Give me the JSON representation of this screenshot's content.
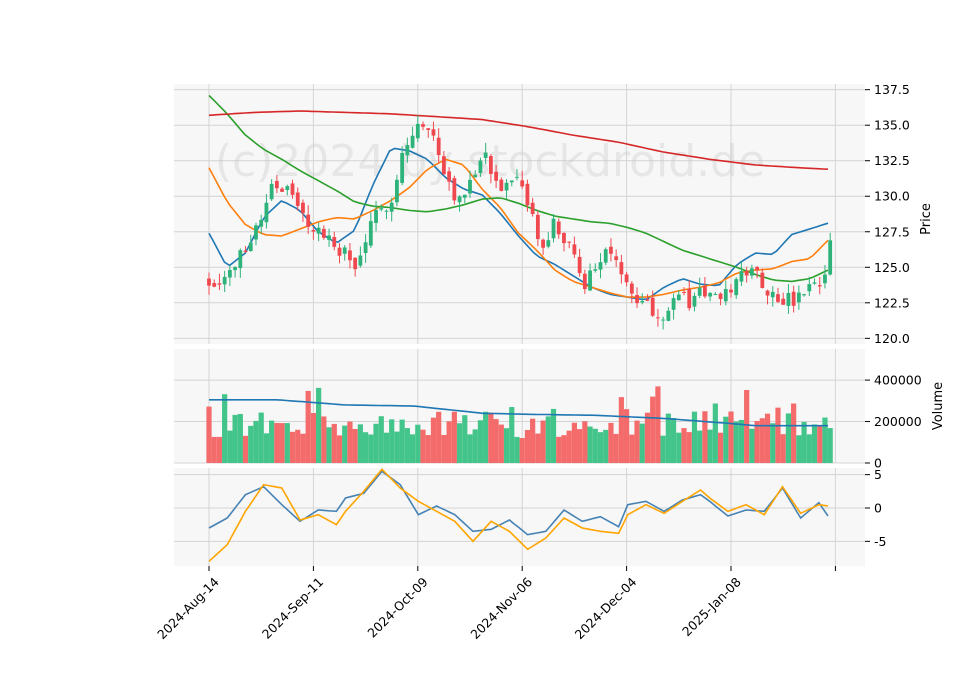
{
  "watermark": "(c)2024 by stockdroid.de",
  "colors": {
    "up": "#2db37a",
    "down": "#f0484f",
    "vol_up": "#43c48a",
    "vol_down": "#f46b6b",
    "ma_short": "#1f77b4",
    "ma_mid": "#ff7f0e",
    "ma_long": "#2ca02c",
    "ma_very_long": "#d62728",
    "osc_fast": "#4682b4",
    "osc_slow": "#ffa500",
    "grid": "#d4d4d4",
    "panel_bg": "#f7f7f7"
  },
  "chart_data": [
    {
      "type": "candlestick",
      "panel": "price",
      "ylabel": "Price",
      "ylim": [
        119.6,
        137.9
      ],
      "yticks": [
        "137.5",
        "135.0",
        "132.5",
        "130.0",
        "127.5",
        "125.0",
        "122.5",
        "120.0"
      ],
      "x_dates": [
        "2024-Aug-14",
        "2024-Sep-11",
        "2024-Oct-09",
        "2024-Nov-06",
        "2024-Dec-04",
        "2025-Jan-08"
      ],
      "n_bars": 120,
      "anchors_close": [
        [
          0,
          124.0
        ],
        [
          4,
          124.5
        ],
        [
          7,
          126.5
        ],
        [
          10,
          128.5
        ],
        [
          12,
          131.0
        ],
        [
          15,
          130.5
        ],
        [
          18,
          128.5
        ],
        [
          21,
          127.5
        ],
        [
          24,
          126.5
        ],
        [
          26,
          126.0
        ],
        [
          28,
          124.8
        ],
        [
          30,
          127.0
        ],
        [
          32,
          128.5
        ],
        [
          35,
          130.0
        ],
        [
          37,
          133.0
        ],
        [
          40,
          135.0
        ],
        [
          43,
          134.2
        ],
        [
          46,
          131.0
        ],
        [
          48,
          129.5
        ],
        [
          50,
          131.5
        ],
        [
          53,
          133.0
        ],
        [
          55,
          131.0
        ],
        [
          57,
          130.5
        ],
        [
          59,
          131.0
        ],
        [
          62,
          128.5
        ],
        [
          64,
          126.0
        ],
        [
          66,
          128.0
        ],
        [
          68,
          127.0
        ],
        [
          70,
          125.5
        ],
        [
          72,
          124.0
        ],
        [
          74,
          124.8
        ],
        [
          76,
          126.5
        ],
        [
          78,
          125.0
        ],
        [
          80,
          124.3
        ],
        [
          82,
          123.0
        ],
        [
          84,
          122.5
        ],
        [
          86,
          121.5
        ],
        [
          88,
          122.2
        ],
        [
          90,
          123.2
        ],
        [
          92,
          122.5
        ],
        [
          94,
          123.5
        ],
        [
          96,
          123.0
        ],
        [
          98,
          122.5
        ],
        [
          100,
          123.5
        ],
        [
          102,
          124.5
        ],
        [
          104,
          125.2
        ],
        [
          106,
          124.0
        ],
        [
          108,
          123.0
        ],
        [
          110,
          122.8
        ],
        [
          112,
          122.5
        ],
        [
          114,
          123.2
        ],
        [
          116,
          123.5
        ],
        [
          118,
          124.0
        ],
        [
          119,
          127.0
        ],
        [
          120,
          127.3
        ]
      ],
      "ma_series": [
        {
          "anchors": [
            [
              0,
              127.4
            ],
            [
              4,
              125.0
            ],
            [
              8,
              126.0
            ],
            [
              12,
              128.5
            ],
            [
              16,
              129.7
            ],
            [
              20,
              129.0
            ],
            [
              24,
              127.5
            ],
            [
              28,
              126.7
            ],
            [
              32,
              127.6
            ],
            [
              36,
              130.8
            ],
            [
              40,
              133.4
            ],
            [
              44,
              133.2
            ],
            [
              48,
              132.6
            ],
            [
              52,
              131.3
            ],
            [
              56,
              130.5
            ],
            [
              60,
              130.1
            ],
            [
              64,
              128.8
            ],
            [
              68,
              127.2
            ],
            [
              72,
              125.8
            ],
            [
              76,
              125.2
            ],
            [
              80,
              124.4
            ],
            [
              84,
              123.6
            ],
            [
              88,
              123.1
            ],
            [
              92,
              122.9
            ],
            [
              96,
              122.7
            ],
            [
              100,
              123.6
            ],
            [
              104,
              124.2
            ],
            [
              108,
              123.8
            ],
            [
              112,
              123.7
            ],
            [
              116,
              125.2
            ],
            [
              120,
              126.0
            ],
            [
              124,
              125.9
            ],
            [
              128,
              127.3
            ],
            [
              132,
              127.7
            ],
            [
              136,
              128.1
            ]
          ]
        },
        {
          "anchors": [
            [
              0,
              132.0
            ],
            [
              4,
              129.6
            ],
            [
              8,
              128.0
            ],
            [
              12,
              127.3
            ],
            [
              16,
              127.2
            ],
            [
              20,
              127.7
            ],
            [
              24,
              128.2
            ],
            [
              28,
              128.5
            ],
            [
              32,
              128.4
            ],
            [
              36,
              129.0
            ],
            [
              40,
              129.7
            ],
            [
              44,
              130.6
            ],
            [
              48,
              131.9
            ],
            [
              52,
              132.6
            ],
            [
              56,
              132.2
            ],
            [
              60,
              130.5
            ],
            [
              64,
              129.2
            ],
            [
              68,
              127.4
            ],
            [
              72,
              126.2
            ],
            [
              76,
              124.8
            ],
            [
              80,
              124.0
            ],
            [
              84,
              123.6
            ],
            [
              88,
              123.2
            ],
            [
              92,
              122.9
            ],
            [
              96,
              122.9
            ],
            [
              100,
              123.1
            ],
            [
              104,
              123.4
            ],
            [
              108,
              123.6
            ],
            [
              112,
              123.9
            ],
            [
              116,
              124.6
            ],
            [
              120,
              124.8
            ],
            [
              124,
              124.9
            ],
            [
              128,
              125.4
            ],
            [
              132,
              125.6
            ],
            [
              136,
              126.9
            ]
          ]
        },
        {
          "anchors": [
            [
              0,
              137.1
            ],
            [
              4,
              135.8
            ],
            [
              8,
              134.3
            ],
            [
              12,
              133.3
            ],
            [
              16,
              132.6
            ],
            [
              20,
              131.8
            ],
            [
              24,
              131.1
            ],
            [
              28,
              130.4
            ],
            [
              32,
              129.6
            ],
            [
              36,
              129.3
            ],
            [
              40,
              129.2
            ],
            [
              44,
              129.0
            ],
            [
              48,
              128.9
            ],
            [
              52,
              129.1
            ],
            [
              56,
              129.4
            ],
            [
              60,
              129.8
            ],
            [
              64,
              129.9
            ],
            [
              68,
              129.5
            ],
            [
              72,
              129.0
            ],
            [
              76,
              128.6
            ],
            [
              80,
              128.4
            ],
            [
              84,
              128.2
            ],
            [
              88,
              128.1
            ],
            [
              92,
              127.8
            ],
            [
              96,
              127.4
            ],
            [
              100,
              126.8
            ],
            [
              104,
              126.2
            ],
            [
              108,
              125.8
            ],
            [
              112,
              125.4
            ],
            [
              116,
              125.0
            ],
            [
              120,
              124.5
            ],
            [
              124,
              124.1
            ],
            [
              128,
              124.0
            ],
            [
              132,
              124.2
            ],
            [
              136,
              124.8
            ]
          ]
        },
        {
          "anchors": [
            [
              0,
              135.7
            ],
            [
              10,
              135.9
            ],
            [
              20,
              136.0
            ],
            [
              30,
              135.9
            ],
            [
              40,
              135.8
            ],
            [
              50,
              135.6
            ],
            [
              60,
              135.4
            ],
            [
              70,
              134.9
            ],
            [
              80,
              134.3
            ],
            [
              90,
              133.8
            ],
            [
              100,
              133.1
            ],
            [
              110,
              132.6
            ],
            [
              120,
              132.2
            ],
            [
              130,
              132.0
            ],
            [
              136,
              131.9
            ]
          ]
        }
      ]
    },
    {
      "type": "bar",
      "panel": "volume",
      "ylabel": "Volume",
      "ylim": [
        0,
        550000
      ],
      "yticks": [
        "400000",
        "200000",
        "0"
      ],
      "volume_ma_anchors": [
        [
          0,
          305000
        ],
        [
          15,
          305000
        ],
        [
          30,
          280000
        ],
        [
          45,
          275000
        ],
        [
          60,
          240000
        ],
        [
          70,
          235000
        ],
        [
          85,
          230000
        ],
        [
          100,
          215000
        ],
        [
          115,
          190000
        ],
        [
          120,
          180000
        ],
        [
          136,
          180000
        ]
      ]
    },
    {
      "type": "line",
      "panel": "oscillator",
      "ylim": [
        -8.7,
        6.0
      ],
      "yticks": [
        "5",
        "0",
        "-5"
      ],
      "series": [
        {
          "anchors": [
            [
              0,
              -3.0
            ],
            [
              4,
              -1.5
            ],
            [
              8,
              2.0
            ],
            [
              12,
              3.2
            ],
            [
              16,
              0.5
            ],
            [
              20,
              -2.0
            ],
            [
              24,
              -0.3
            ],
            [
              28,
              -0.5
            ],
            [
              30,
              1.5
            ],
            [
              34,
              2.2
            ],
            [
              38,
              5.5
            ],
            [
              42,
              3.5
            ],
            [
              46,
              -1.0
            ],
            [
              50,
              0.3
            ],
            [
              54,
              -1.0
            ],
            [
              58,
              -3.5
            ],
            [
              62,
              -3.2
            ],
            [
              66,
              -1.8
            ],
            [
              70,
              -4.0
            ],
            [
              74,
              -3.5
            ],
            [
              78,
              -0.3
            ],
            [
              82,
              -2.0
            ],
            [
              86,
              -1.3
            ],
            [
              90,
              -2.8
            ],
            [
              92,
              0.5
            ],
            [
              96,
              1.0
            ],
            [
              100,
              -0.5
            ],
            [
              104,
              1.2
            ],
            [
              108,
              2.0
            ],
            [
              110,
              1.0
            ],
            [
              114,
              -1.2
            ],
            [
              118,
              -0.3
            ],
            [
              122,
              -0.5
            ],
            [
              126,
              3.0
            ],
            [
              130,
              -1.5
            ],
            [
              134,
              0.8
            ],
            [
              136,
              -1.2
            ]
          ]
        },
        {
          "anchors": [
            [
              0,
              -8.0
            ],
            [
              4,
              -5.5
            ],
            [
              8,
              -0.5
            ],
            [
              12,
              3.5
            ],
            [
              16,
              3.0
            ],
            [
              20,
              -1.8
            ],
            [
              24,
              -1.0
            ],
            [
              28,
              -2.5
            ],
            [
              30,
              -0.5
            ],
            [
              34,
              2.5
            ],
            [
              38,
              5.8
            ],
            [
              42,
              3.0
            ],
            [
              46,
              1.0
            ],
            [
              50,
              -0.5
            ],
            [
              54,
              -2.0
            ],
            [
              58,
              -5.0
            ],
            [
              62,
              -2.0
            ],
            [
              66,
              -3.5
            ],
            [
              70,
              -6.2
            ],
            [
              74,
              -4.5
            ],
            [
              78,
              -1.5
            ],
            [
              82,
              -3.0
            ],
            [
              86,
              -3.5
            ],
            [
              90,
              -3.8
            ],
            [
              92,
              -1.0
            ],
            [
              96,
              0.5
            ],
            [
              100,
              -0.8
            ],
            [
              104,
              1.0
            ],
            [
              108,
              2.7
            ],
            [
              110,
              1.5
            ],
            [
              114,
              -0.5
            ],
            [
              118,
              0.5
            ],
            [
              122,
              -1.0
            ],
            [
              126,
              3.2
            ],
            [
              130,
              -0.8
            ],
            [
              134,
              0.5
            ],
            [
              136,
              0.3
            ]
          ]
        }
      ]
    }
  ]
}
